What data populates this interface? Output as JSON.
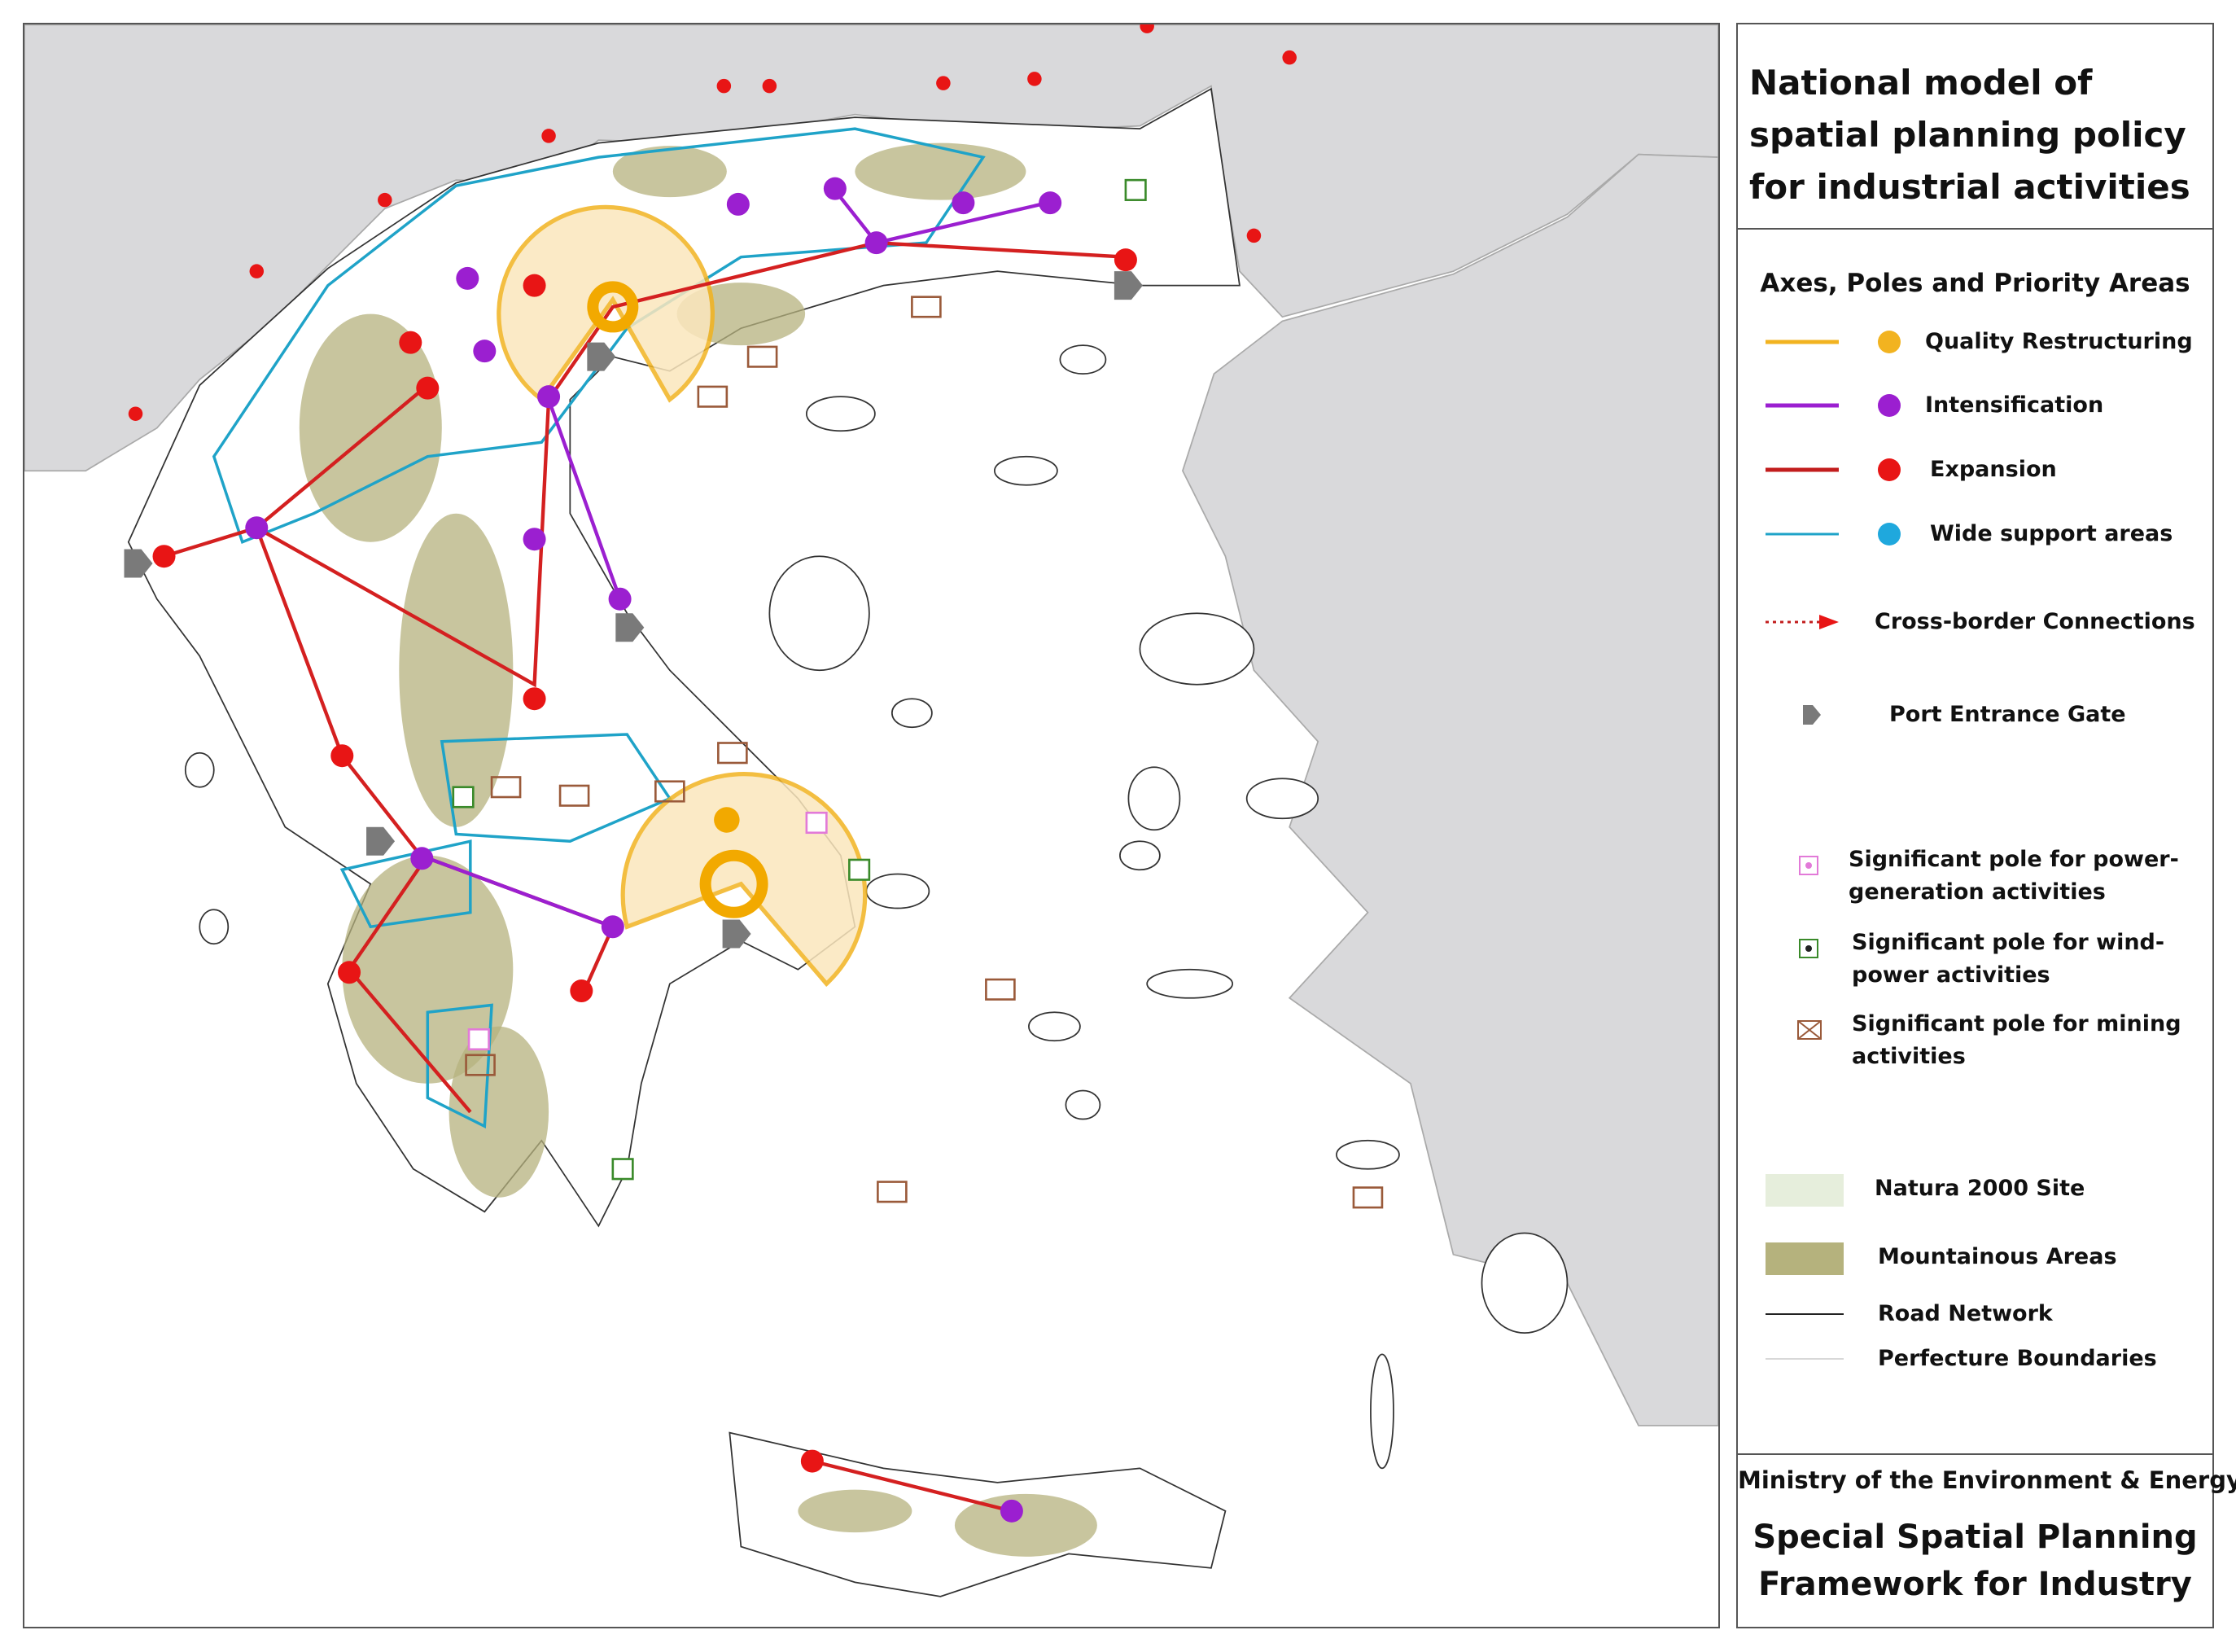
{
  "map": {
    "title": "National model of spatial planning policy for industrial activities",
    "legend": {
      "heading": "Axes, Poles and Priority Areas",
      "items": [
        "Quality Restructuring",
        "Intensification",
        "Expansion",
        "Wide support areas",
        "Cross-border Connections",
        "Port Entrance Gate",
        "Significant pole for power-generation activities",
        "Significant pole for wind-power activities",
        "Significant pole for mining activities",
        "Natura 2000 Site",
        "Mountainous Areas",
        "Road Network",
        "Perfecture Boundaries"
      ]
    },
    "footer": {
      "ministry": "Ministry of the Environment & Energy",
      "framework": "Special Spatial Planning Framework for Industry"
    }
  }
}
